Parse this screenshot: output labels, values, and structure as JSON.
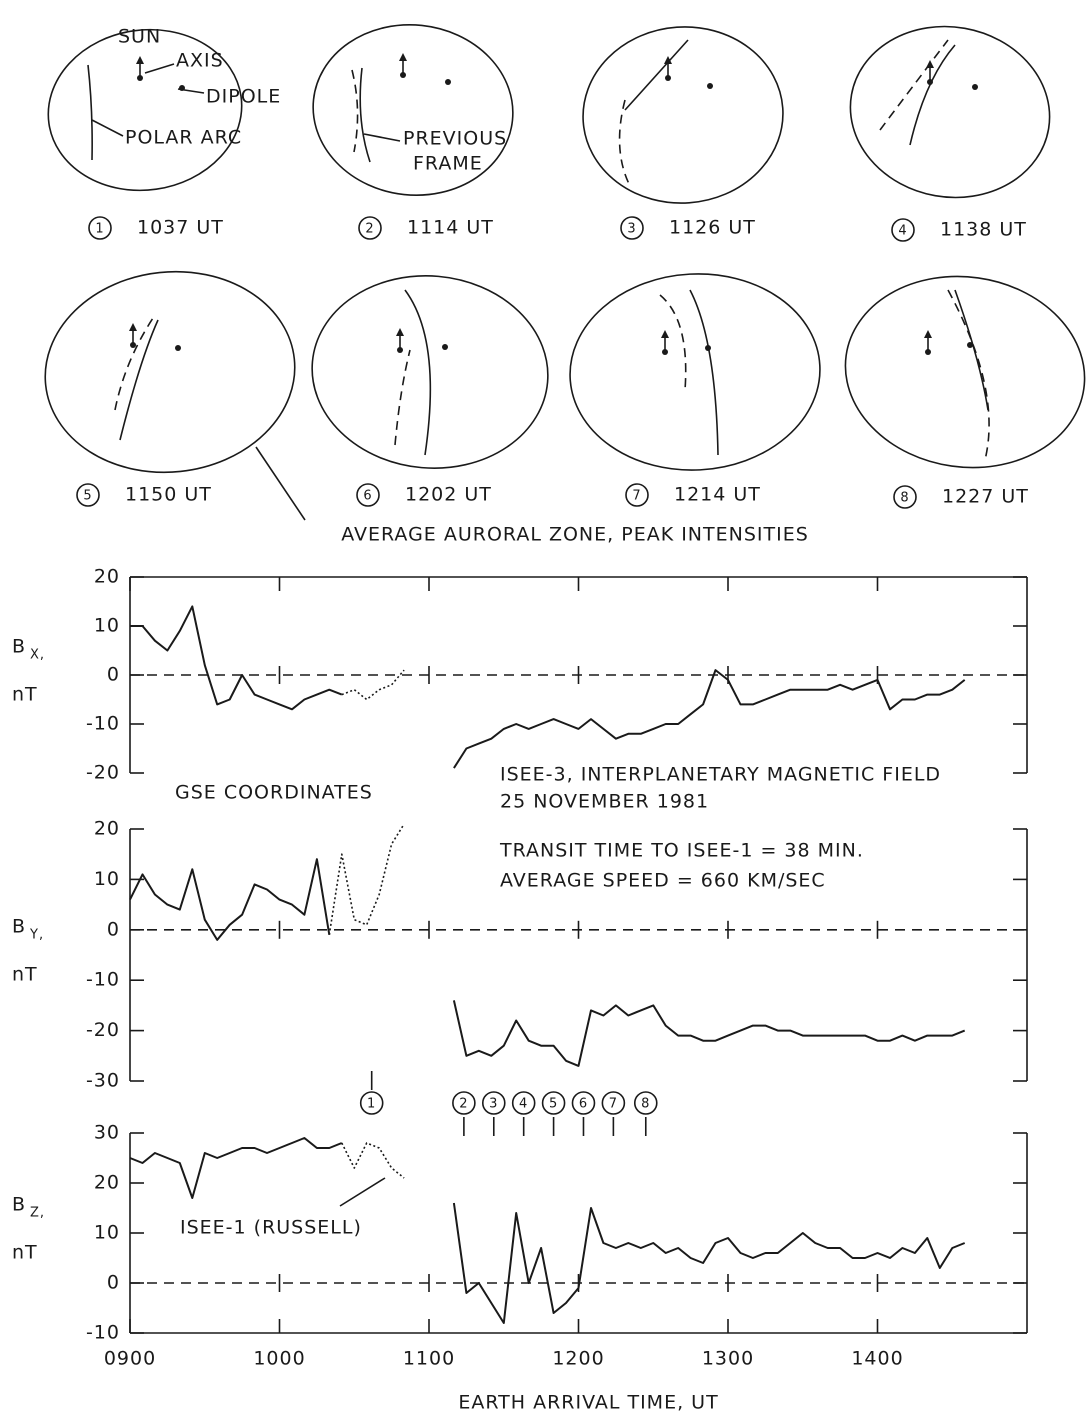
{
  "frames": [
    {
      "number": "1",
      "time": "1037 UT"
    },
    {
      "number": "2",
      "time": "1114 UT"
    },
    {
      "number": "3",
      "time": "1126 UT"
    },
    {
      "number": "4",
      "time": "1138 UT"
    },
    {
      "number": "5",
      "time": "1150 UT"
    },
    {
      "number": "6",
      "time": "1202 UT"
    },
    {
      "number": "7",
      "time": "1214 UT"
    },
    {
      "number": "8",
      "time": "1227 UT"
    }
  ],
  "frame_labels": {
    "sun": "SUN",
    "axis": "AXIS",
    "dipole": "DIPOLE",
    "polar_arc": "POLAR ARC",
    "previous_frame": [
      "PREVIOUS",
      "FRAME"
    ]
  },
  "zone_caption": "AVERAGE AURORAL ZONE, PEAK INTENSITIES",
  "chart_data": [
    {
      "type": "line",
      "ylabel": "B",
      "ylabel_subscript": "X,",
      "ylabel_unit": "nT",
      "x": [
        540,
        545,
        550,
        555,
        560,
        565,
        570,
        575,
        580,
        585,
        590,
        595,
        600,
        605,
        610,
        615,
        620,
        625,
        630,
        635,
        640,
        645,
        650,
        655,
        660,
        665,
        670,
        675,
        680,
        685,
        690,
        695,
        700,
        705,
        710,
        715,
        720,
        725,
        730,
        735,
        740,
        745,
        750,
        755,
        760,
        765,
        770,
        775,
        780,
        785,
        790,
        795,
        800,
        805,
        810,
        815,
        820,
        825,
        830,
        835,
        840,
        845,
        850,
        855,
        860,
        865,
        870,
        875
      ],
      "xlim": [
        540,
        900
      ],
      "xticks": [
        540,
        600,
        660,
        720,
        780,
        840
      ],
      "ylim": [
        -20,
        20
      ],
      "yticks": [
        -20,
        -10,
        0,
        10,
        20
      ],
      "zero_line": true,
      "series": [
        {
          "line_style": "solid",
          "color": "#1a1a1a",
          "values": [
            10,
            10,
            7,
            5,
            9,
            14,
            2,
            -6,
            -5,
            0,
            -4,
            -5,
            -6,
            -7,
            -5,
            -4,
            -3,
            -4,
            null,
            null,
            null,
            null,
            null,
            null,
            null,
            null,
            -19,
            -15,
            -14,
            -13,
            -11,
            -10,
            -11,
            -10,
            -9,
            -10,
            -11,
            -9,
            -11,
            -13,
            -12,
            -12,
            -11,
            -10,
            -10,
            -8,
            -6,
            1,
            -1,
            -6,
            -6,
            -5,
            -4,
            -3,
            -3,
            -3,
            -3,
            -2,
            -3,
            -2,
            -1,
            -7,
            -5,
            -5,
            -4,
            -4,
            -3,
            -1
          ]
        },
        {
          "line_style": "dotted",
          "color": "#1a1a1a",
          "values": [
            null,
            null,
            null,
            null,
            null,
            null,
            null,
            null,
            null,
            null,
            null,
            null,
            null,
            null,
            null,
            null,
            null,
            -4,
            -3,
            -5,
            -3,
            -2,
            1,
            null,
            null,
            null,
            null,
            null,
            null,
            null,
            null,
            null,
            null,
            null,
            null,
            null,
            null,
            null,
            null,
            null,
            null,
            null,
            null,
            null,
            null,
            null,
            null,
            null,
            null,
            null,
            null,
            null,
            null,
            null,
            null,
            null,
            null,
            null,
            null,
            null,
            null,
            null,
            null,
            null,
            null,
            null,
            null,
            null
          ]
        }
      ],
      "annotations": [
        "GSE COORDINATES",
        "ISEE-3, INTERPLANETARY MAGNETIC FIELD",
        "25 NOVEMBER 1981"
      ]
    },
    {
      "type": "line",
      "ylabel": "B",
      "ylabel_subscript": "Y,",
      "ylabel_unit": "nT",
      "x": [
        540,
        545,
        550,
        555,
        560,
        565,
        570,
        575,
        580,
        585,
        590,
        595,
        600,
        605,
        610,
        615,
        620,
        625,
        630,
        635,
        640,
        645,
        650,
        655,
        660,
        665,
        670,
        675,
        680,
        685,
        690,
        695,
        700,
        705,
        710,
        715,
        720,
        725,
        730,
        735,
        740,
        745,
        750,
        755,
        760,
        765,
        770,
        775,
        780,
        785,
        790,
        795,
        800,
        805,
        810,
        815,
        820,
        825,
        830,
        835,
        840,
        845,
        850,
        855,
        860,
        865,
        870,
        875
      ],
      "xlim": [
        540,
        900
      ],
      "xticks": [
        540,
        600,
        660,
        720,
        780,
        840
      ],
      "ylim": [
        -30,
        20
      ],
      "yticks": [
        -30,
        -20,
        -10,
        0,
        10,
        20
      ],
      "zero_line": true,
      "series": [
        {
          "line_style": "solid",
          "color": "#1a1a1a",
          "values": [
            6,
            11,
            7,
            5,
            4,
            12,
            2,
            -2,
            1,
            3,
            9,
            8,
            6,
            5,
            3,
            14,
            -1,
            null,
            null,
            null,
            null,
            null,
            null,
            null,
            null,
            null,
            -14,
            -25,
            -24,
            -25,
            -23,
            -18,
            -22,
            -23,
            -23,
            -26,
            -27,
            -16,
            -17,
            -15,
            -17,
            -16,
            -15,
            -19,
            -21,
            -21,
            -22,
            -22,
            -21,
            -20,
            -19,
            -19,
            -20,
            -20,
            -21,
            -21,
            -21,
            -21,
            -21,
            -21,
            -22,
            -22,
            -21,
            -22,
            -21,
            -21,
            -21,
            -20
          ]
        },
        {
          "line_style": "dotted",
          "color": "#1a1a1a",
          "values": [
            null,
            null,
            null,
            null,
            null,
            null,
            null,
            null,
            null,
            null,
            null,
            null,
            null,
            null,
            null,
            null,
            -1,
            15,
            2,
            1,
            7,
            17,
            21,
            null,
            null,
            null,
            null,
            null,
            null,
            null,
            null,
            null,
            null,
            null,
            null,
            null,
            null,
            null,
            null,
            null,
            null,
            null,
            null,
            null,
            null,
            null,
            null,
            null,
            null,
            null,
            null,
            null,
            null,
            null,
            null,
            null,
            null,
            null,
            null,
            null,
            null,
            null,
            null,
            null,
            null,
            null,
            null,
            null
          ]
        }
      ],
      "annotations": [
        "TRANSIT TIME TO ISEE-1 = 38 MIN.",
        "AVERAGE SPEED = 660 KM/SEC"
      ]
    },
    {
      "type": "line",
      "ylabel": "B",
      "ylabel_subscript": "Z,",
      "ylabel_unit": "nT",
      "x": [
        540,
        545,
        550,
        555,
        560,
        565,
        570,
        575,
        580,
        585,
        590,
        595,
        600,
        605,
        610,
        615,
        620,
        625,
        630,
        635,
        640,
        645,
        650,
        655,
        660,
        665,
        670,
        675,
        680,
        685,
        690,
        695,
        700,
        705,
        710,
        715,
        720,
        725,
        730,
        735,
        740,
        745,
        750,
        755,
        760,
        765,
        770,
        775,
        780,
        785,
        790,
        795,
        800,
        805,
        810,
        815,
        820,
        825,
        830,
        835,
        840,
        845,
        850,
        855,
        860,
        865,
        870,
        875
      ],
      "xlim": [
        540,
        900
      ],
      "xticks": [
        {
          "value": 540,
          "label": "0900"
        },
        {
          "value": 600,
          "label": "1000"
        },
        {
          "value": 660,
          "label": "1100"
        },
        {
          "value": 720,
          "label": "1200"
        },
        {
          "value": 780,
          "label": "1300"
        },
        {
          "value": 840,
          "label": "1400"
        }
      ],
      "xlabel": "EARTH ARRIVAL TIME, UT",
      "ylim": [
        -10,
        30
      ],
      "yticks": [
        -10,
        0,
        10,
        20,
        30
      ],
      "zero_line": true,
      "series": [
        {
          "line_style": "solid",
          "color": "#1a1a1a",
          "values": [
            25,
            24,
            26,
            25,
            24,
            17,
            26,
            25,
            26,
            27,
            27,
            26,
            27,
            28,
            29,
            27,
            27,
            28,
            null,
            null,
            null,
            null,
            null,
            null,
            null,
            null,
            16,
            -2,
            0,
            -4,
            -8,
            14,
            0,
            7,
            -6,
            -4,
            -1,
            15,
            8,
            7,
            8,
            7,
            8,
            6,
            7,
            5,
            4,
            8,
            9,
            6,
            5,
            6,
            6,
            8,
            10,
            8,
            7,
            7,
            5,
            5,
            6,
            5,
            7,
            6,
            9,
            3,
            7,
            8
          ]
        },
        {
          "line_style": "dotted",
          "color": "#1a1a1a",
          "values": [
            null,
            null,
            null,
            null,
            null,
            null,
            null,
            null,
            null,
            null,
            null,
            null,
            null,
            null,
            null,
            null,
            null,
            28,
            23,
            28,
            27,
            23,
            21,
            null,
            null,
            null,
            null,
            null,
            null,
            null,
            null,
            null,
            null,
            null,
            null,
            null,
            null,
            null,
            null,
            null,
            null,
            null,
            null,
            null,
            null,
            null,
            null,
            null,
            null,
            null,
            null,
            null,
            null,
            null,
            null,
            null,
            null,
            null,
            null,
            null,
            null,
            null,
            null,
            null,
            null,
            null,
            null,
            null
          ]
        }
      ],
      "annotations": [
        "ISEE-1 (RUSSELL)"
      ],
      "markers": [
        {
          "label": "1",
          "x": 637
        },
        {
          "label": "2",
          "x": 674
        },
        {
          "label": "3",
          "x": 686
        },
        {
          "label": "4",
          "x": 698
        },
        {
          "label": "5",
          "x": 710
        },
        {
          "label": "6",
          "x": 722
        },
        {
          "label": "7",
          "x": 734
        },
        {
          "label": "8",
          "x": 747
        }
      ]
    }
  ]
}
